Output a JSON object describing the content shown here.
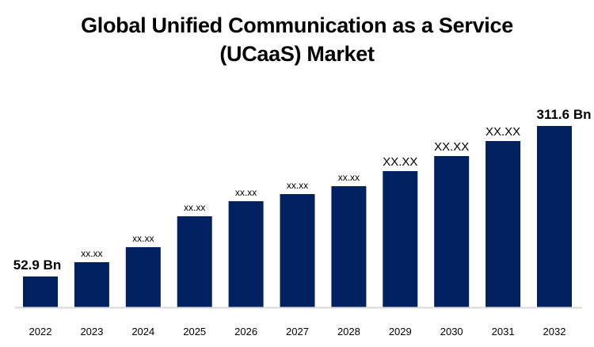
{
  "chart_data": {
    "type": "bar",
    "title": "Global Unified Communication as a Service (UCaaS) Market",
    "title_lines": [
      "Global Unified Communication as a Service",
      "(UCaaS) Market"
    ],
    "categories": [
      "2022",
      "2023",
      "2024",
      "2025",
      "2026",
      "2027",
      "2028",
      "2029",
      "2030",
      "2031",
      "2032"
    ],
    "values": [
      52.9,
      77.4,
      103.3,
      156.4,
      182.3,
      194.5,
      208.1,
      234.0,
      259.9,
      285.7,
      311.6
    ],
    "data_labels": [
      "52.9 Bn",
      "xx.xx",
      "xx.xx",
      "xx.xx",
      "xx.xx",
      "xx.xx",
      "xx.xx",
      "XX.XX",
      "XX.XX",
      "XX.XX",
      "311.6 Bn"
    ],
    "xlabel": "",
    "ylabel": "",
    "ylim": [
      -12.5,
      337.5
    ],
    "grid": false,
    "legend": "none",
    "bar_color": "#002060",
    "axis_color": "#d9d9d9"
  }
}
